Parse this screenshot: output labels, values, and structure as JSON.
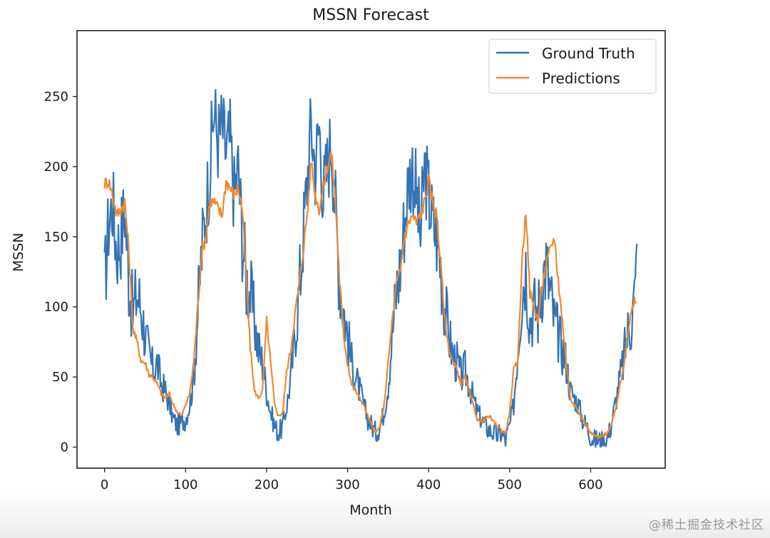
{
  "watermark": "@稀土掘金技术社区",
  "colors": {
    "truth": "#3474b4",
    "pred": "#f0882e",
    "axes": "#222222"
  },
  "chart_data": {
    "type": "line",
    "title": "MSSN Forecast",
    "xlabel": "Month",
    "ylabel": "MSSN",
    "xlim": [
      -34,
      692
    ],
    "ylim": [
      -15,
      297
    ],
    "xticks": [
      0,
      100,
      200,
      300,
      400,
      500,
      600
    ],
    "yticks": [
      0,
      50,
      100,
      150,
      200,
      250
    ],
    "grid": false,
    "legend_position": "top-right",
    "x": [
      0,
      5,
      10,
      15,
      20,
      25,
      30,
      35,
      40,
      45,
      50,
      55,
      60,
      65,
      70,
      75,
      80,
      85,
      90,
      95,
      100,
      105,
      110,
      115,
      120,
      125,
      130,
      135,
      140,
      145,
      150,
      155,
      160,
      165,
      170,
      175,
      180,
      185,
      190,
      195,
      200,
      205,
      210,
      215,
      220,
      225,
      230,
      235,
      240,
      245,
      250,
      255,
      260,
      265,
      270,
      275,
      280,
      285,
      290,
      295,
      300,
      305,
      310,
      315,
      320,
      325,
      330,
      335,
      340,
      345,
      350,
      355,
      360,
      365,
      370,
      375,
      380,
      385,
      390,
      395,
      400,
      405,
      410,
      415,
      420,
      425,
      430,
      435,
      440,
      445,
      450,
      455,
      460,
      465,
      470,
      475,
      480,
      485,
      490,
      495,
      500,
      505,
      510,
      515,
      520,
      525,
      530,
      535,
      540,
      545,
      550,
      555,
      560,
      565,
      570,
      575,
      580,
      585,
      590,
      595,
      600,
      605,
      610,
      615,
      620,
      625,
      630,
      635,
      640,
      645,
      650,
      655,
      657
    ],
    "series": [
      {
        "name": "Ground Truth",
        "values": [
          115,
          160,
          175,
          140,
          150,
          170,
          120,
          95,
          110,
          100,
          80,
          65,
          55,
          60,
          45,
          40,
          30,
          20,
          15,
          18,
          20,
          30,
          50,
          95,
          140,
          170,
          200,
          240,
          220,
          230,
          210,
          220,
          180,
          200,
          150,
          120,
          110,
          90,
          70,
          60,
          40,
          25,
          15,
          10,
          15,
          30,
          50,
          80,
          110,
          150,
          190,
          230,
          200,
          230,
          180,
          200,
          220,
          170,
          120,
          100,
          80,
          60,
          50,
          40,
          30,
          20,
          15,
          10,
          15,
          25,
          45,
          80,
          110,
          130,
          160,
          190,
          200,
          180,
          150,
          200,
          180,
          160,
          150,
          130,
          100,
          80,
          65,
          60,
          50,
          55,
          45,
          35,
          25,
          20,
          15,
          12,
          10,
          8,
          10,
          5,
          15,
          30,
          70,
          110,
          130,
          90,
          100,
          95,
          120,
          130,
          110,
          90,
          80,
          70,
          60,
          40,
          35,
          30,
          20,
          15,
          8,
          5,
          5,
          4,
          5,
          15,
          30,
          45,
          60,
          80,
          90,
          110,
          145
        ]
      },
      {
        "name": "Predictions",
        "values": [
          188,
          190,
          180,
          165,
          170,
          175,
          140,
          85,
          75,
          62,
          60,
          52,
          50,
          45,
          38,
          35,
          38,
          30,
          25,
          22,
          30,
          38,
          60,
          100,
          140,
          150,
          175,
          175,
          170,
          165,
          190,
          185,
          180,
          185,
          170,
          120,
          70,
          40,
          35,
          40,
          90,
          60,
          30,
          22,
          25,
          55,
          70,
          95,
          115,
          140,
          165,
          205,
          180,
          170,
          185,
          200,
          210,
          175,
          120,
          80,
          60,
          45,
          40,
          35,
          30,
          22,
          15,
          10,
          15,
          30,
          60,
          90,
          115,
          125,
          150,
          160,
          165,
          160,
          165,
          175,
          190,
          175,
          165,
          130,
          90,
          70,
          60,
          55,
          45,
          50,
          40,
          30,
          20,
          18,
          20,
          22,
          18,
          15,
          12,
          10,
          25,
          55,
          60,
          130,
          170,
          110,
          100,
          90,
          115,
          130,
          140,
          150,
          120,
          90,
          60,
          35,
          30,
          25,
          20,
          15,
          10,
          8,
          7,
          8,
          10,
          15,
          25,
          40,
          55,
          80,
          95,
          105,
          103
        ]
      }
    ]
  }
}
